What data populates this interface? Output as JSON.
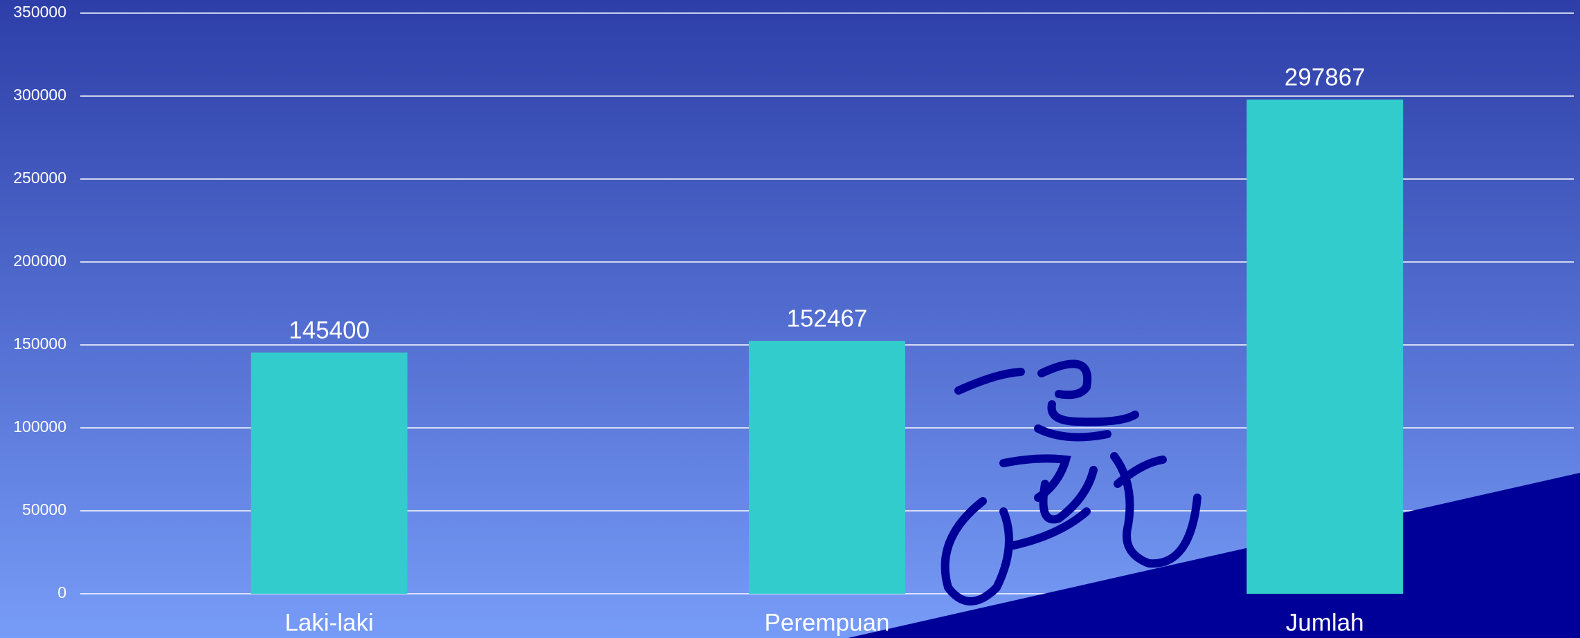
{
  "chart_data": {
    "type": "bar",
    "categories": [
      "Laki-laki",
      "Perempuan",
      "Jumlah"
    ],
    "values": [
      145400,
      152467,
      297867
    ],
    "color": "#33cccc",
    "ylim": [
      0,
      350000
    ],
    "yticks": [
      0,
      50000,
      100000,
      150000,
      200000,
      250000,
      300000,
      350000
    ],
    "grid": true
  }
}
